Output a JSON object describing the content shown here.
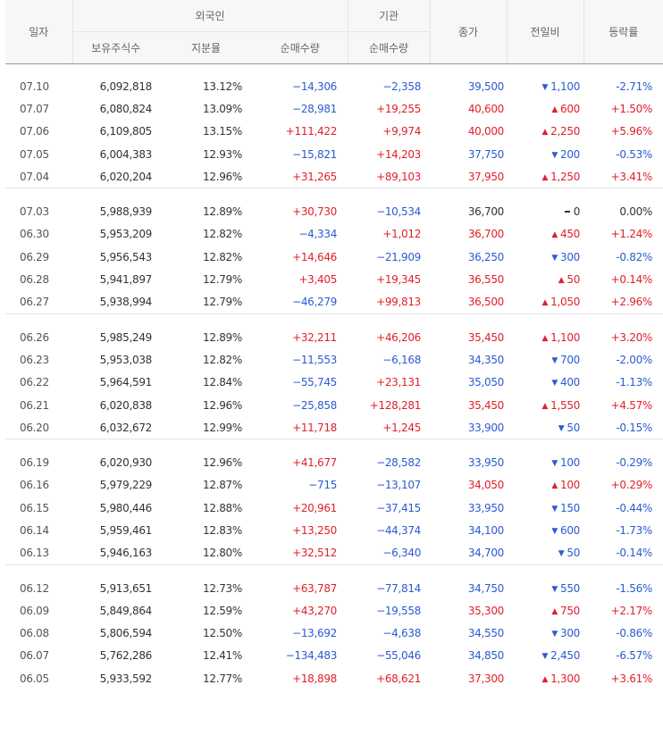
{
  "header": {
    "date": "일자",
    "foreign": "외국인",
    "institution": "기관",
    "holdings": "보유주식수",
    "ratio": "지분율",
    "foreign_net": "순매수량",
    "inst_net": "순매수량",
    "close": "종가",
    "change": "전일비",
    "rate": "등락률"
  },
  "colors": {
    "up": "#e0202a",
    "down": "#2b5bd0",
    "flat": "#333333"
  },
  "groups": [
    [
      {
        "date": "07.10",
        "holdings": "6,092,818",
        "ratio": "13.12%",
        "fnet": "−14,306",
        "fdir": "dn",
        "inet": "−2,358",
        "idir": "dn",
        "close": "39,500",
        "dir": "dn",
        "chg": "1,100",
        "rate": "-2.71%"
      },
      {
        "date": "07.07",
        "holdings": "6,080,824",
        "ratio": "13.09%",
        "fnet": "−28,981",
        "fdir": "dn",
        "inet": "+19,255",
        "idir": "up",
        "close": "40,600",
        "dir": "up",
        "chg": "600",
        "rate": "+1.50%"
      },
      {
        "date": "07.06",
        "holdings": "6,109,805",
        "ratio": "13.15%",
        "fnet": "+111,422",
        "fdir": "up",
        "inet": "+9,974",
        "idir": "up",
        "close": "40,000",
        "dir": "up",
        "chg": "2,250",
        "rate": "+5.96%"
      },
      {
        "date": "07.05",
        "holdings": "6,004,383",
        "ratio": "12.93%",
        "fnet": "−15,821",
        "fdir": "dn",
        "inet": "+14,203",
        "idir": "up",
        "close": "37,750",
        "dir": "dn",
        "chg": "200",
        "rate": "-0.53%"
      },
      {
        "date": "07.04",
        "holdings": "6,020,204",
        "ratio": "12.96%",
        "fnet": "+31,265",
        "fdir": "up",
        "inet": "+89,103",
        "idir": "up",
        "close": "37,950",
        "dir": "up",
        "chg": "1,250",
        "rate": "+3.41%"
      }
    ],
    [
      {
        "date": "07.03",
        "holdings": "5,988,939",
        "ratio": "12.89%",
        "fnet": "+30,730",
        "fdir": "up",
        "inet": "−10,534",
        "idir": "dn",
        "close": "36,700",
        "dir": "fl",
        "chg": "0",
        "rate": "0.00%"
      },
      {
        "date": "06.30",
        "holdings": "5,953,209",
        "ratio": "12.82%",
        "fnet": "−4,334",
        "fdir": "dn",
        "inet": "+1,012",
        "idir": "up",
        "close": "36,700",
        "dir": "up",
        "chg": "450",
        "rate": "+1.24%"
      },
      {
        "date": "06.29",
        "holdings": "5,956,543",
        "ratio": "12.82%",
        "fnet": "+14,646",
        "fdir": "up",
        "inet": "−21,909",
        "idir": "dn",
        "close": "36,250",
        "dir": "dn",
        "chg": "300",
        "rate": "-0.82%"
      },
      {
        "date": "06.28",
        "holdings": "5,941,897",
        "ratio": "12.79%",
        "fnet": "+3,405",
        "fdir": "up",
        "inet": "+19,345",
        "idir": "up",
        "close": "36,550",
        "dir": "up",
        "chg": "50",
        "rate": "+0.14%"
      },
      {
        "date": "06.27",
        "holdings": "5,938,994",
        "ratio": "12.79%",
        "fnet": "−46,279",
        "fdir": "dn",
        "inet": "+99,813",
        "idir": "up",
        "close": "36,500",
        "dir": "up",
        "chg": "1,050",
        "rate": "+2.96%"
      }
    ],
    [
      {
        "date": "06.26",
        "holdings": "5,985,249",
        "ratio": "12.89%",
        "fnet": "+32,211",
        "fdir": "up",
        "inet": "+46,206",
        "idir": "up",
        "close": "35,450",
        "dir": "up",
        "chg": "1,100",
        "rate": "+3.20%"
      },
      {
        "date": "06.23",
        "holdings": "5,953,038",
        "ratio": "12.82%",
        "fnet": "−11,553",
        "fdir": "dn",
        "inet": "−6,168",
        "idir": "dn",
        "close": "34,350",
        "dir": "dn",
        "chg": "700",
        "rate": "-2.00%"
      },
      {
        "date": "06.22",
        "holdings": "5,964,591",
        "ratio": "12.84%",
        "fnet": "−55,745",
        "fdir": "dn",
        "inet": "+23,131",
        "idir": "up",
        "close": "35,050",
        "dir": "dn",
        "chg": "400",
        "rate": "-1.13%"
      },
      {
        "date": "06.21",
        "holdings": "6,020,838",
        "ratio": "12.96%",
        "fnet": "−25,858",
        "fdir": "dn",
        "inet": "+128,281",
        "idir": "up",
        "close": "35,450",
        "dir": "up",
        "chg": "1,550",
        "rate": "+4.57%"
      },
      {
        "date": "06.20",
        "holdings": "6,032,672",
        "ratio": "12.99%",
        "fnet": "+11,718",
        "fdir": "up",
        "inet": "+1,245",
        "idir": "up",
        "close": "33,900",
        "dir": "dn",
        "chg": "50",
        "rate": "-0.15%"
      }
    ],
    [
      {
        "date": "06.19",
        "holdings": "6,020,930",
        "ratio": "12.96%",
        "fnet": "+41,677",
        "fdir": "up",
        "inet": "−28,582",
        "idir": "dn",
        "close": "33,950",
        "dir": "dn",
        "chg": "100",
        "rate": "-0.29%"
      },
      {
        "date": "06.16",
        "holdings": "5,979,229",
        "ratio": "12.87%",
        "fnet": "−715",
        "fdir": "dn",
        "inet": "−13,107",
        "idir": "dn",
        "close": "34,050",
        "dir": "up",
        "chg": "100",
        "rate": "+0.29%"
      },
      {
        "date": "06.15",
        "holdings": "5,980,446",
        "ratio": "12.88%",
        "fnet": "+20,961",
        "fdir": "up",
        "inet": "−37,415",
        "idir": "dn",
        "close": "33,950",
        "dir": "dn",
        "chg": "150",
        "rate": "-0.44%"
      },
      {
        "date": "06.14",
        "holdings": "5,959,461",
        "ratio": "12.83%",
        "fnet": "+13,250",
        "fdir": "up",
        "inet": "−44,374",
        "idir": "dn",
        "close": "34,100",
        "dir": "dn",
        "chg": "600",
        "rate": "-1.73%"
      },
      {
        "date": "06.13",
        "holdings": "5,946,163",
        "ratio": "12.80%",
        "fnet": "+32,512",
        "fdir": "up",
        "inet": "−6,340",
        "idir": "dn",
        "close": "34,700",
        "dir": "dn",
        "chg": "50",
        "rate": "-0.14%"
      }
    ],
    [
      {
        "date": "06.12",
        "holdings": "5,913,651",
        "ratio": "12.73%",
        "fnet": "+63,787",
        "fdir": "up",
        "inet": "−77,814",
        "idir": "dn",
        "close": "34,750",
        "dir": "dn",
        "chg": "550",
        "rate": "-1.56%"
      },
      {
        "date": "06.09",
        "holdings": "5,849,864",
        "ratio": "12.59%",
        "fnet": "+43,270",
        "fdir": "up",
        "inet": "−19,558",
        "idir": "dn",
        "close": "35,300",
        "dir": "up",
        "chg": "750",
        "rate": "+2.17%"
      },
      {
        "date": "06.08",
        "holdings": "5,806,594",
        "ratio": "12.50%",
        "fnet": "−13,692",
        "fdir": "dn",
        "inet": "−4,638",
        "idir": "dn",
        "close": "34,550",
        "dir": "dn",
        "chg": "300",
        "rate": "-0.86%"
      },
      {
        "date": "06.07",
        "holdings": "5,762,286",
        "ratio": "12.41%",
        "fnet": "−134,483",
        "fdir": "dn",
        "inet": "−55,046",
        "idir": "dn",
        "close": "34,850",
        "dir": "dn",
        "chg": "2,450",
        "rate": "-6.57%"
      },
      {
        "date": "06.05",
        "holdings": "5,933,592",
        "ratio": "12.77%",
        "fnet": "+18,898",
        "fdir": "up",
        "inet": "+68,621",
        "idir": "up",
        "close": "37,300",
        "dir": "up",
        "chg": "1,300",
        "rate": "+3.61%"
      }
    ]
  ]
}
